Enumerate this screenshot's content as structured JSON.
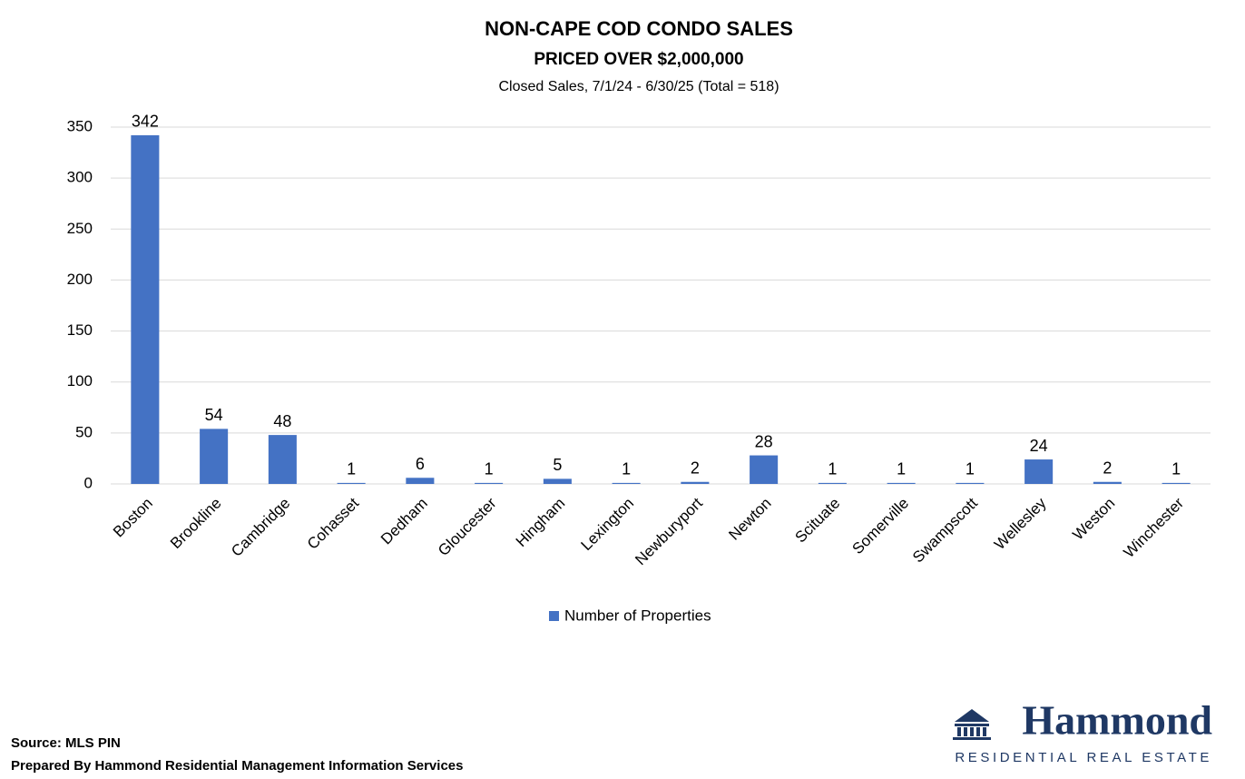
{
  "chart_data": {
    "type": "bar",
    "title": "NON-CAPE COD CONDO SALES",
    "subtitle": "PRICED OVER $2,000,000",
    "caption": "Closed Sales, 7/1/24 - 6/30/25 (Total = 518)",
    "categories": [
      "Boston",
      "Brookline",
      "Cambridge",
      "Cohasset",
      "Dedham",
      "Gloucester",
      "Hingham",
      "Lexington",
      "Newburyport",
      "Newton",
      "Scituate",
      "Somerville",
      "Swampscott",
      "Wellesley",
      "Weston",
      "Winchester"
    ],
    "series": [
      {
        "name": "Number of Properties",
        "color": "#4472c4",
        "values": [
          342,
          54,
          48,
          1,
          6,
          1,
          5,
          1,
          2,
          28,
          1,
          1,
          1,
          24,
          2,
          1
        ]
      }
    ],
    "ylim": [
      0,
      350
    ],
    "yticks": [
      0,
      50,
      100,
      150,
      200,
      250,
      300,
      350
    ],
    "grid": true,
    "legend": "bottom"
  },
  "footer": {
    "source": "Source: MLS PIN",
    "prepared_by": "Prepared By Hammond Residential Management Information Services"
  },
  "logo": {
    "name": "Hammond",
    "tagline": "RESIDENTIAL REAL ESTATE"
  }
}
